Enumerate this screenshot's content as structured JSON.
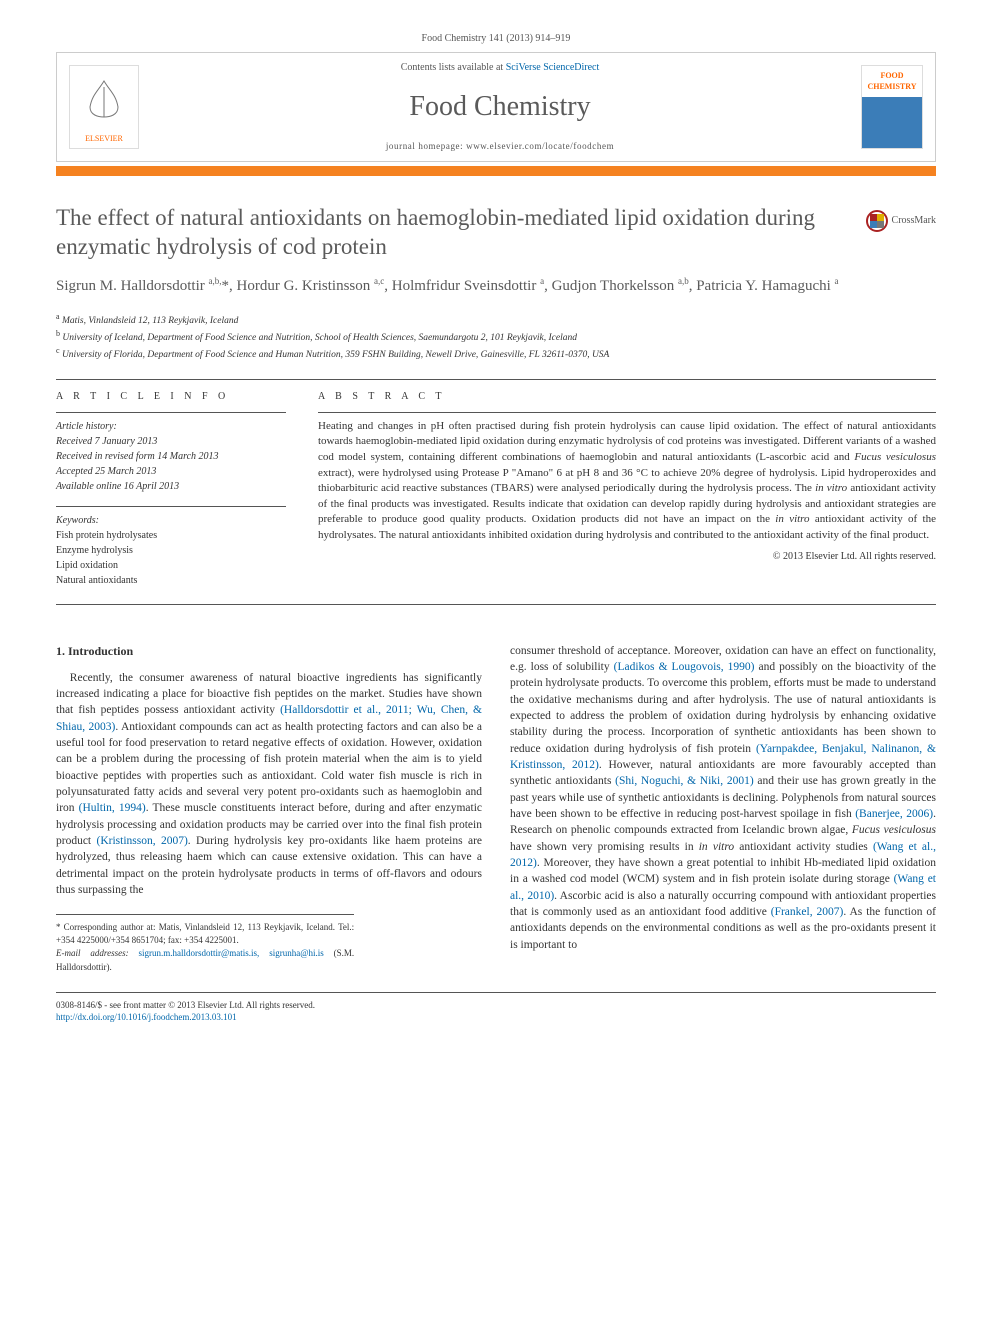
{
  "header": {
    "citation": "Food Chemistry 141 (2013) 914–919",
    "contents_prefix": "Contents lists available at ",
    "contents_link": "SciVerse ScienceDirect",
    "journal_name": "Food Chemistry",
    "homepage_prefix": "journal homepage: ",
    "homepage_url": "www.elsevier.com/locate/foodchem",
    "publisher_label": "ELSEVIER",
    "cover_line1": "FOOD",
    "cover_line2": "CHEMISTRY",
    "crossmark_label": "CrossMark",
    "orange_bar_color": "#f58220"
  },
  "article": {
    "title": "The effect of natural antioxidants on haemoglobin-mediated lipid oxidation during enzymatic hydrolysis of cod protein",
    "authors_html": "Sigrun M. Halldorsdottir <sup>a,b,</sup>*, Hordur G. Kristinsson <sup>a,c</sup>, Holmfridur Sveinsdottir <sup>a</sup>, Gudjon Thorkelsson <sup>a,b</sup>, Patricia Y. Hamaguchi <sup>a</sup>",
    "affiliations": [
      {
        "sup": "a",
        "text": "Matis, Vinlandsleid 12, 113 Reykjavik, Iceland"
      },
      {
        "sup": "b",
        "text": "University of Iceland, Department of Food Science and Nutrition, School of Health Sciences, Saemundargotu 2, 101 Reykjavik, Iceland"
      },
      {
        "sup": "c",
        "text": "University of Florida, Department of Food Science and Human Nutrition, 359 FSHN Building, Newell Drive, Gainesville, FL 32611-0370, USA"
      }
    ]
  },
  "info": {
    "label": "A R T I C L E   I N F O",
    "history_label": "Article history:",
    "history": [
      "Received 7 January 2013",
      "Received in revised form 14 March 2013",
      "Accepted 25 March 2013",
      "Available online 16 April 2013"
    ],
    "keywords_label": "Keywords:",
    "keywords": [
      "Fish protein hydrolysates",
      "Enzyme hydrolysis",
      "Lipid oxidation",
      "Natural antioxidants"
    ]
  },
  "abstract": {
    "label": "A B S T R A C T",
    "text": "Heating and changes in pH often practised during fish protein hydrolysis can cause lipid oxidation. The effect of natural antioxidants towards haemoglobin-mediated lipid oxidation during enzymatic hydrolysis of cod proteins was investigated. Different variants of a washed cod model system, containing different combinations of haemoglobin and natural antioxidants (L-ascorbic acid and Fucus vesiculosus extract), were hydrolysed using Protease P \"Amano\" 6 at pH 8 and 36 °C to achieve 20% degree of hydrolysis. Lipid hydroperoxides and thiobarbituric acid reactive substances (TBARS) were analysed periodically during the hydrolysis process. The in vitro antioxidant activity of the final products was investigated. Results indicate that oxidation can develop rapidly during hydrolysis and antioxidant strategies are preferable to produce good quality products. Oxidation products did not have an impact on the in vitro antioxidant activity of the hydrolysates. The natural antioxidants inhibited oxidation during hydrolysis and contributed to the antioxidant activity of the final product.",
    "copyright": "© 2013 Elsevier Ltd. All rights reserved."
  },
  "body": {
    "section_heading": "1. Introduction",
    "col1": "Recently, the consumer awareness of natural bioactive ingredients has significantly increased indicating a place for bioactive fish peptides on the market. Studies have shown that fish peptides possess antioxidant activity (Halldorsdottir et al., 2011; Wu, Chen, & Shiau, 2003). Antioxidant compounds can act as health protecting factors and can also be a useful tool for food preservation to retard negative effects of oxidation. However, oxidation can be a problem during the processing of fish protein material when the aim is to yield bioactive peptides with properties such as antioxidant. Cold water fish muscle is rich in polyunsaturated fatty acids and several very potent pro-oxidants such as haemoglobin and iron (Hultin, 1994). These muscle constituents interact before, during and after enzymatic hydrolysis processing and oxidation products may be carried over into the final fish protein product (Kristinsson, 2007). During hydrolysis key pro-oxidants like haem proteins are hydrolyzed, thus releasing haem which can cause extensive oxidation. This can have a detrimental impact on the protein hydrolysate products in terms of off-flavors and odours thus surpassing the",
    "col2": "consumer threshold of acceptance. Moreover, oxidation can have an effect on functionality, e.g. loss of solubility (Ladikos & Lougovois, 1990) and possibly on the bioactivity of the protein hydrolysate products. To overcome this problem, efforts must be made to understand the oxidative mechanisms during and after hydrolysis. The use of natural antioxidants is expected to address the problem of oxidation during hydrolysis by enhancing oxidative stability during the process. Incorporation of synthetic antioxidants has been shown to reduce oxidation during hydrolysis of fish protein (Yarnpakdee, Benjakul, Nalinanon, & Kristinsson, 2012). However, natural antioxidants are more favourably accepted than synthetic antioxidants (Shi, Noguchi, & Niki, 2001) and their use has grown greatly in the past years while use of synthetic antioxidants is declining. Polyphenols from natural sources have been shown to be effective in reducing post-harvest spoilage in fish (Banerjee, 2006). Research on phenolic compounds extracted from Icelandic brown algae, Fucus vesiculosus have shown very promising results in in vitro antioxidant activity studies (Wang et al., 2012). Moreover, they have shown a great potential to inhibit Hb-mediated lipid oxidation in a washed cod model (WCM) system and in fish protein isolate during storage (Wang et al., 2010). Ascorbic acid is also a naturally occurring compound with antioxidant properties that is commonly used as an antioxidant food additive (Frankel, 2007). As the function of antioxidants depends on the environmental conditions as well as the pro-oxidants present it is important to"
  },
  "footnotes": {
    "corresponding": "* Corresponding author at: Matis, Vinlandsleid 12, 113 Reykjavik, Iceland. Tel.: +354 4225000/+354 8651704; fax: +354 4225001.",
    "email_label": "E-mail addresses:",
    "emails": "sigrun.m.halldorsdottir@matis.is, sigrunha@hi.is",
    "email_suffix": "(S.M. Halldorsdottir)."
  },
  "bottom": {
    "line1": "0308-8146/$ - see front matter © 2013 Elsevier Ltd. All rights reserved.",
    "doi": "http://dx.doi.org/10.1016/j.foodchem.2013.03.101"
  },
  "colors": {
    "text": "#333333",
    "muted": "#5a5a5a",
    "link": "#0066aa",
    "accent": "#f58220",
    "publisher": "#ff6600"
  },
  "typography": {
    "body_fontsize_pt": 11.5,
    "title_fontsize_pt": 23,
    "journal_fontsize_pt": 28,
    "abstract_fontsize_pt": 11,
    "small_fontsize_pt": 10,
    "footnote_fontsize_pt": 9
  }
}
